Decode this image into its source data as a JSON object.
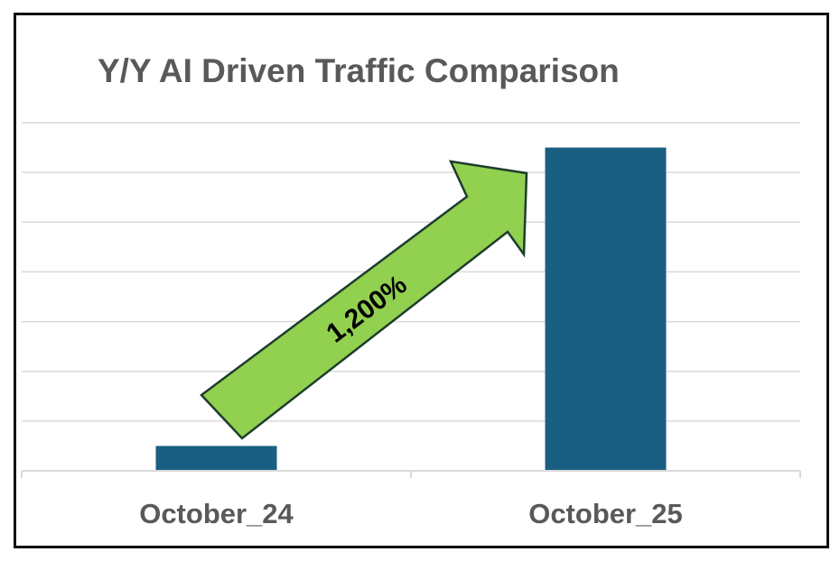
{
  "chart_data": {
    "type": "bar",
    "title": "Y/Y AI Driven Traffic Comparison",
    "categories": [
      "October_24",
      "October_25"
    ],
    "values": [
      1,
      13
    ],
    "ylim": [
      0,
      14
    ],
    "grid": true,
    "annotation": "1,200%",
    "colors": {
      "bar": "#1a5f82",
      "arrow_fill": "#92d050",
      "arrow_stroke": "#1e3d2b",
      "grid": "#d9d9d9",
      "text": "#595959"
    }
  }
}
